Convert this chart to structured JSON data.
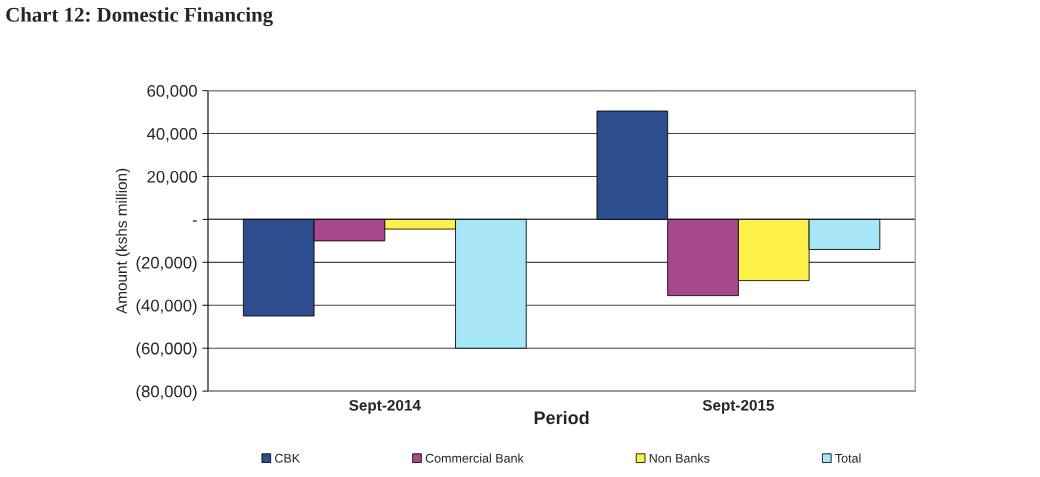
{
  "chart_data": {
    "type": "bar",
    "title": "Chart 12: Domestic Financing",
    "xlabel": "Period",
    "ylabel": "Amount (kshs million)",
    "categories": [
      "Sept-2014",
      "Sept-2015"
    ],
    "series": [
      {
        "name": "CBK",
        "color": "#2e4d8f",
        "values": [
          -45000,
          50500
        ]
      },
      {
        "name": "Commercial Bank",
        "color": "#a9488e",
        "values": [
          -10000,
          -35500
        ]
      },
      {
        "name": "Non Banks",
        "color": "#fff04a",
        "values": [
          -4500,
          -28500
        ]
      },
      {
        "name": "Total",
        "color": "#a6e6f7",
        "values": [
          -60000,
          -14000
        ]
      }
    ],
    "ylim": [
      -80000,
      60000
    ],
    "yticks": [
      {
        "value": -80000,
        "label": "(80,000)"
      },
      {
        "value": -60000,
        "label": "(60,000)"
      },
      {
        "value": -40000,
        "label": "(40,000)"
      },
      {
        "value": -20000,
        "label": "(20,000)"
      },
      {
        "value": 0,
        "label": "-"
      },
      {
        "value": 20000,
        "label": "20,000"
      },
      {
        "value": 40000,
        "label": "40,000"
      },
      {
        "value": 60000,
        "label": "60,000"
      }
    ],
    "grid": "y",
    "legend": "bottom"
  }
}
